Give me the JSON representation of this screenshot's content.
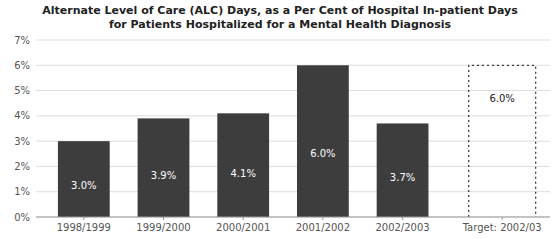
{
  "chart_data": {
    "type": "bar",
    "title": "Alternate Level of Care (ALC) Days, as a Per Cent of Hospital In-patient Days",
    "subtitle": "for Patients Hospitalized for a Mental Health Diagnosis",
    "categories": [
      "1998/1999",
      "1999/2000",
      "2000/2001",
      "2001/2002",
      "2002/2003"
    ],
    "values": [
      3.0,
      3.9,
      4.1,
      6.0,
      3.7
    ],
    "value_labels": [
      "3.0%",
      "3.9%",
      "4.1%",
      "6.0%",
      "3.7%"
    ],
    "data_labels": true,
    "color": "#3d3d3d",
    "target": {
      "category": "Target: 2002/03",
      "value": 6.0,
      "value_label": "6.0%"
    },
    "ylim": [
      0,
      7
    ],
    "yticks": [
      {
        "value": 0,
        "label": "0%"
      },
      {
        "value": 1,
        "label": "1%"
      },
      {
        "value": 2,
        "label": "2%"
      },
      {
        "value": 3,
        "label": "3%"
      },
      {
        "value": 4,
        "label": "4%"
      },
      {
        "value": 5,
        "label": "5%"
      },
      {
        "value": 6,
        "label": "6%"
      },
      {
        "value": 7,
        "label": "7%"
      }
    ],
    "grid": true
  }
}
